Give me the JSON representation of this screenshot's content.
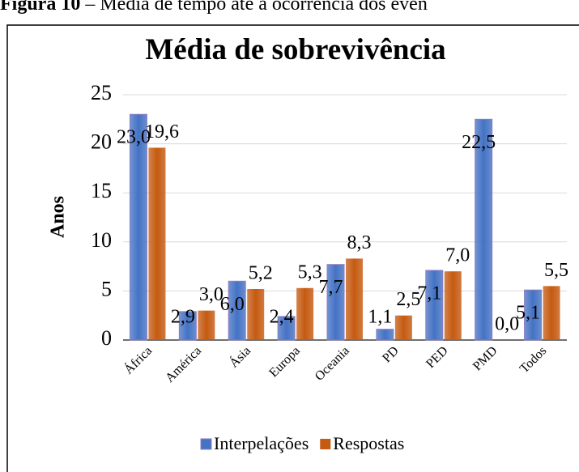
{
  "caption": {
    "label": "Figura 10",
    "text": "– Média de tempo até à ocorrência dos even"
  },
  "chart_data": {
    "type": "bar",
    "title": "Média de sobrevivência",
    "y_label": "Anos",
    "categories": [
      "África",
      "América",
      "Ásia",
      "Europa",
      "Oceania",
      "PD",
      "PED",
      "PMD",
      "Todos"
    ],
    "series": [
      {
        "name": "Interpelações",
        "color": "#4472c4",
        "values": [
          23.0,
          2.9,
          6.0,
          2.4,
          7.7,
          1.1,
          7.1,
          22.5,
          5.1
        ],
        "value_labels": [
          "23,0",
          "2,9",
          "6,0",
          "2,4",
          "7,7",
          "1,1",
          "7,1",
          "22,5",
          "5,1"
        ]
      },
      {
        "name": "Respostas",
        "color": "#c55a11",
        "values": [
          19.6,
          3.0,
          5.2,
          5.3,
          8.3,
          2.5,
          7.0,
          0.0,
          5.5
        ],
        "value_labels": [
          "19,6",
          "3,0",
          "5,2",
          "5,3",
          "8,3",
          "2,5",
          "7,0",
          "0,0",
          "5,5"
        ]
      }
    ],
    "ylim": [
      0,
      25
    ],
    "yticks": [
      0,
      5,
      10,
      15,
      20,
      25
    ],
    "grid": true,
    "legend": "bottom"
  }
}
